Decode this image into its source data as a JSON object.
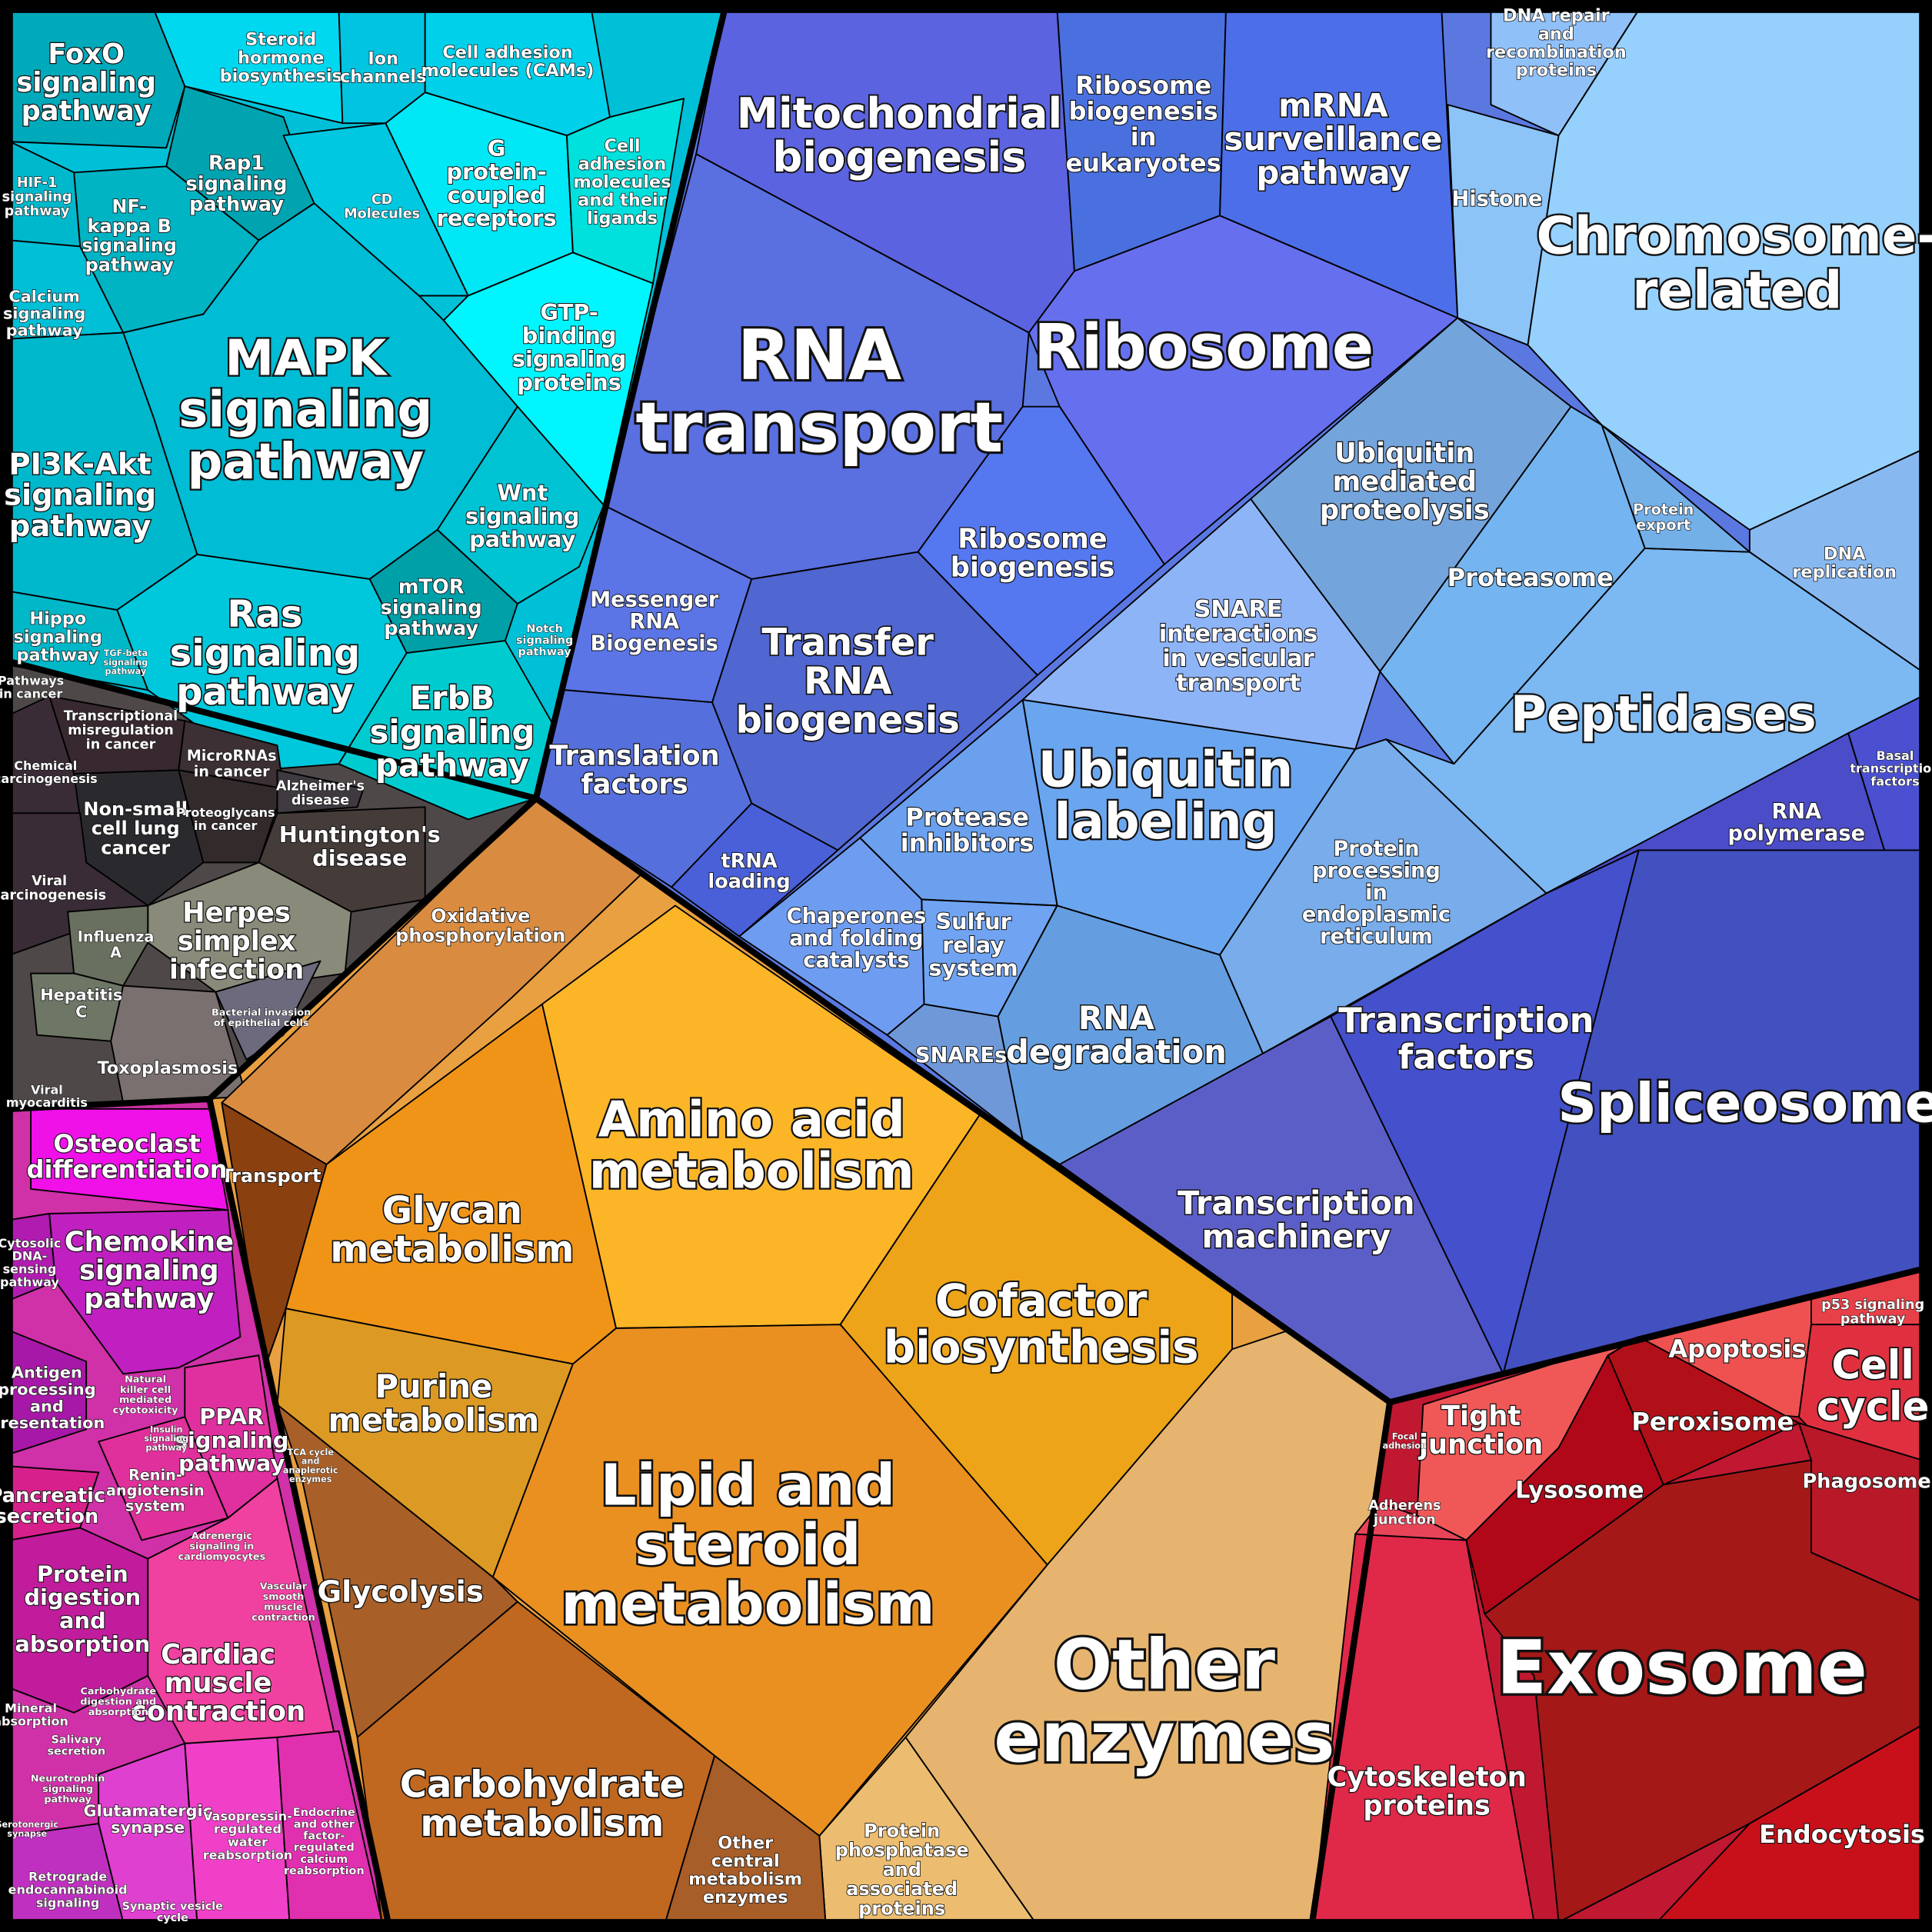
{
  "cells": [
    {
      "label": [
        "FoxO",
        "signaling",
        "pathway"
      ]
    },
    {
      "label": [
        "Steroid",
        "hormone",
        "biosynthesis"
      ]
    },
    {
      "label": [
        "Ion",
        "channels"
      ]
    },
    {
      "label": [
        "Cell adhesion",
        "molecules (CAMs)"
      ]
    },
    {
      "label": [
        "Rap1",
        "signaling",
        "pathway"
      ]
    },
    {
      "label": [
        "NF-",
        "kappa B",
        "signaling",
        "pathway"
      ]
    },
    {
      "label": [
        "HIF-1",
        "signaling",
        "pathway"
      ]
    },
    {
      "label": [
        "Calcium",
        "signaling",
        "pathway"
      ]
    },
    {
      "label": [
        "CD",
        "Molecules"
      ]
    },
    {
      "label": [
        "G",
        "protein-",
        "coupled",
        "receptors"
      ]
    },
    {
      "label": [
        "Cell",
        "adhesion",
        "molecules",
        "and their",
        "ligands"
      ]
    },
    {
      "label": [
        "GTP-",
        "binding",
        "signaling",
        "proteins"
      ]
    },
    {
      "label": [
        "MAPK",
        "signaling",
        "pathway"
      ]
    },
    {
      "label": [
        "PI3K-Akt",
        "signaling",
        "pathway"
      ]
    },
    {
      "label": [
        "Wnt",
        "signaling",
        "pathway"
      ]
    },
    {
      "label": [
        "mTOR",
        "signaling",
        "pathway"
      ]
    },
    {
      "label": [
        "Ras",
        "signaling",
        "pathway"
      ]
    },
    {
      "label": [
        "Hippo",
        "signaling",
        "pathway"
      ]
    },
    {
      "label": [
        "ErbB",
        "signaling",
        "pathway"
      ]
    },
    {
      "label": [
        "Notch",
        "signaling",
        "pathway"
      ]
    },
    {
      "label": [
        "TGF-beta",
        "signaling",
        "pathway"
      ]
    },
    {
      "label": [
        "Pathways",
        "in cancer"
      ]
    },
    {
      "label": [
        "Transcriptional",
        "misregulation",
        "in cancer"
      ]
    },
    {
      "label": [
        "Chemical",
        "carcinogenesis"
      ]
    },
    {
      "label": [
        "Non-small",
        "cell lung",
        "cancer"
      ]
    },
    {
      "label": [
        "MicroRNAs",
        "in cancer"
      ]
    },
    {
      "label": [
        "Proteoglycans",
        "in cancer"
      ]
    },
    {
      "label": [
        "Alzheimer's",
        "disease"
      ]
    },
    {
      "label": [
        "Huntington's",
        "disease"
      ]
    },
    {
      "label": [
        "Viral",
        "carcinogenesis"
      ]
    },
    {
      "label": [
        "Herpes",
        "simplex",
        "infection"
      ]
    },
    {
      "label": [
        "Influenza",
        "A"
      ]
    },
    {
      "label": [
        "Hepatitis",
        "C"
      ]
    },
    {
      "label": [
        "Toxoplasmosis"
      ]
    },
    {
      "label": [
        "Bacterial invasion",
        "of epithelial cells"
      ]
    },
    {
      "label": [
        "Viral",
        "myocarditis"
      ]
    },
    {
      "label": [
        "Oxidative",
        "phosphorylation"
      ]
    },
    {
      "label": [
        "Transport"
      ]
    },
    {
      "label": [
        "Amino acid",
        "metabolism"
      ]
    },
    {
      "label": [
        "Glycan",
        "metabolism"
      ]
    },
    {
      "label": [
        "Cofactor",
        "biosynthesis"
      ]
    },
    {
      "label": [
        "Purine",
        "metabolism"
      ]
    },
    {
      "label": [
        "Lipid and",
        "steroid",
        "metabolism"
      ]
    },
    {
      "label": [
        "Other",
        "enzymes"
      ]
    },
    {
      "label": [
        "Protein",
        "phosphatase",
        "and",
        "associated",
        "proteins"
      ]
    },
    {
      "label": [
        "Glycolysis"
      ]
    },
    {
      "label": [
        "Carbohydrate",
        "metabolism"
      ]
    },
    {
      "label": [
        "Other",
        "central",
        "metabolism",
        "enzymes"
      ]
    },
    {
      "label": [
        "TCA cycle",
        "and",
        "anaplerotic",
        "enzymes"
      ]
    },
    {
      "label": [
        "Mitochondrial",
        "biogenesis"
      ]
    },
    {
      "label": [
        "Ribosome",
        "biogenesis",
        "in",
        "eukaryotes"
      ]
    },
    {
      "label": [
        "mRNA",
        "surveillance",
        "pathway"
      ]
    },
    {
      "label": [
        "RNA",
        "transport"
      ]
    },
    {
      "label": [
        "Ribosome"
      ]
    },
    {
      "label": [
        "Ribosome",
        "biogenesis"
      ]
    },
    {
      "label": [
        "Messenger",
        "RNA",
        "Biogenesis"
      ]
    },
    {
      "label": [
        "Transfer",
        "RNA",
        "biogenesis"
      ]
    },
    {
      "label": [
        "Translation",
        "factors"
      ]
    },
    {
      "label": [
        "tRNA",
        "loading"
      ]
    },
    {
      "label": [
        "Ubiquitin",
        "mediated",
        "proteolysis"
      ]
    },
    {
      "label": [
        "Proteasome"
      ]
    },
    {
      "label": [
        "SNARE",
        "interactions",
        "in vesicular",
        "transport"
      ]
    },
    {
      "label": [
        "Ubiquitin",
        "labeling"
      ]
    },
    {
      "label": [
        "Protease",
        "inhibitors"
      ]
    },
    {
      "label": [
        "Chaperones",
        "and folding",
        "catalysts"
      ]
    },
    {
      "label": [
        "Sulfur",
        "relay",
        "system"
      ]
    },
    {
      "label": [
        "SNAREs"
      ]
    },
    {
      "label": [
        "RNA",
        "degradation"
      ]
    },
    {
      "label": [
        "Protein",
        "processing",
        "in",
        "endoplasmic",
        "reticulum"
      ]
    },
    {
      "label": [
        "Peptidases"
      ]
    },
    {
      "label": [
        "Protein",
        "export"
      ]
    },
    {
      "label": [
        "DNA repair",
        "and",
        "recombination",
        "proteins"
      ]
    },
    {
      "label": [
        "Histone"
      ]
    },
    {
      "label": [
        "Chromosome-",
        "related"
      ]
    },
    {
      "label": [
        "DNA",
        "replication"
      ]
    },
    {
      "label": [
        "RNA",
        "polymerase"
      ]
    },
    {
      "label": [
        "Basal",
        "transcription",
        "factors"
      ]
    },
    {
      "label": [
        "Transcription",
        "factors"
      ]
    },
    {
      "label": [
        "Spliceosome"
      ]
    },
    {
      "label": [
        "Transcription",
        "machinery"
      ]
    },
    {
      "label": [
        "p53 signaling",
        "pathway"
      ]
    },
    {
      "label": [
        "Apoptosis"
      ]
    },
    {
      "label": [
        "Cell",
        "cycle"
      ]
    },
    {
      "label": [
        "Peroxisome"
      ]
    },
    {
      "label": [
        "Tight",
        "junction"
      ]
    },
    {
      "label": [
        "Lysosome"
      ]
    },
    {
      "label": [
        "Phagosome"
      ]
    },
    {
      "label": [
        "Exosome"
      ]
    },
    {
      "label": [
        "Endocytosis"
      ]
    },
    {
      "label": [
        "Cytoskeleton",
        "proteins"
      ]
    },
    {
      "label": [
        "Adherens",
        "junction"
      ]
    },
    {
      "label": [
        "Osteoclast",
        "differentiation"
      ]
    },
    {
      "label": [
        "Chemokine",
        "signaling",
        "pathway"
      ]
    },
    {
      "label": [
        "Cytosolic",
        "DNA-",
        "sensing",
        "pathway"
      ]
    },
    {
      "label": [
        "Antigen",
        "processing",
        "and",
        "presentation"
      ]
    },
    {
      "label": [
        "Natural",
        "killer cell",
        "mediated",
        "cytotoxicity"
      ]
    },
    {
      "label": [
        "PPAR",
        "signaling",
        "pathway"
      ]
    },
    {
      "label": [
        "Renin-",
        "angiotensin",
        "system"
      ]
    },
    {
      "label": [
        "Pancreatic",
        "secretion"
      ]
    },
    {
      "label": [
        "Protein",
        "digestion",
        "and",
        "absorption"
      ]
    },
    {
      "label": [
        "Cardiac",
        "muscle",
        "contraction"
      ]
    },
    {
      "label": [
        "Adrenergic",
        "signaling in",
        "cardiomyocytes"
      ]
    },
    {
      "label": [
        "Glutamatergic",
        "synapse"
      ]
    },
    {
      "label": [
        "Vasopressin-",
        "regulated",
        "water",
        "reabsorption"
      ]
    },
    {
      "label": [
        "Endocrine",
        "and other",
        "factor-",
        "regulated",
        "calcium",
        "reabsorption"
      ]
    },
    {
      "label": [
        "Retrograde",
        "endocannabinoid",
        "signaling"
      ]
    },
    {
      "label": [
        "Mineral",
        "absorption"
      ]
    },
    {
      "label": [
        "Salivary",
        "secretion"
      ]
    },
    {
      "label": [
        "Carbohydrate",
        "digestion and",
        "absorption"
      ]
    },
    {
      "label": [
        "Neurotrophin",
        "signaling",
        "pathway"
      ]
    },
    {
      "label": [
        "Synaptic vesicle",
        "cycle"
      ]
    },
    {
      "label": [
        "Insulin",
        "signaling",
        "pathway"
      ]
    },
    {
      "label": [
        "Focal",
        "adhesion"
      ]
    },
    {
      "label": [
        "Serotonergic",
        "synapse"
      ]
    },
    {
      "label": [
        "Vascular",
        "smooth",
        "muscle",
        "contraction"
      ]
    }
  ]
}
